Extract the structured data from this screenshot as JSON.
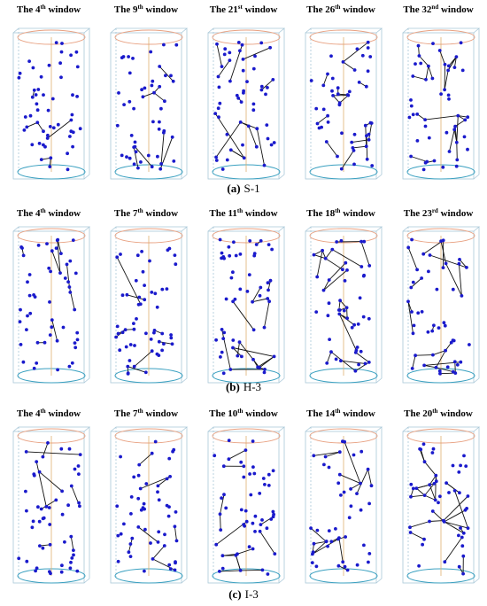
{
  "rows": [
    {
      "caption": {
        "label": "(a)",
        "name": "S-1"
      },
      "panels": [
        {
          "pre": "The 4",
          "sup": "th",
          "post": " window"
        },
        {
          "pre": "The 9",
          "sup": "th",
          "post": " window"
        },
        {
          "pre": "The 21",
          "sup": "st",
          "post": " window"
        },
        {
          "pre": "The 26",
          "sup": "th",
          "post": " window"
        },
        {
          "pre": "The 32",
          "sup": "nd",
          "post": " window"
        }
      ]
    },
    {
      "caption": {
        "label": "(b)",
        "name": "H-3"
      },
      "panels": [
        {
          "pre": "The 4",
          "sup": "th",
          "post": " window"
        },
        {
          "pre": "The 7",
          "sup": "th",
          "post": " window"
        },
        {
          "pre": "The 11",
          "sup": "th",
          "post": " window"
        },
        {
          "pre": "The 18",
          "sup": "th",
          "post": " window"
        },
        {
          "pre": "The 23",
          "sup": "rd",
          "post": " window"
        }
      ]
    },
    {
      "caption": {
        "label": "(c)",
        "name": "I-3"
      },
      "panels": [
        {
          "pre": "The 4",
          "sup": "th",
          "post": " window"
        },
        {
          "pre": "The 7",
          "sup": "th",
          "post": " window"
        },
        {
          "pre": "The 10",
          "sup": "th",
          "post": " window"
        },
        {
          "pre": "The 14",
          "sup": "th",
          "post": " window"
        },
        {
          "pre": "The 20",
          "sup": "th",
          "post": " window"
        }
      ]
    }
  ],
  "colors": {
    "point": "#1a1acc",
    "link": "#111111",
    "top_ellipse": "#e8a080",
    "bottom_ellipse": "#3aa0c0",
    "box_edge": "#a9c8d8",
    "axis_line": "#e0b070"
  }
}
